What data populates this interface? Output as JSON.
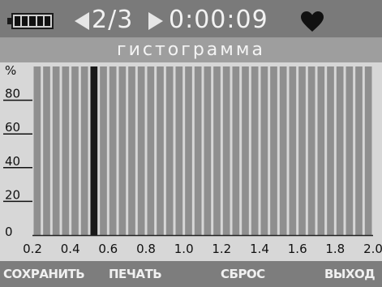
{
  "status": {
    "battery_icon": "battery-full-icon",
    "page_counter": "2/3",
    "timer": "0:00:09",
    "heart_icon": "heart-icon"
  },
  "header": {
    "title": "гистограмма"
  },
  "chart_data": {
    "type": "bar",
    "title": "",
    "ylabel": "%",
    "xlabel": "",
    "ylim": [
      0,
      100
    ],
    "xlim": [
      0.2,
      2.0
    ],
    "y_ticks": [
      "0",
      "20",
      "40",
      "60",
      "80"
    ],
    "x_ticks": [
      "0.2",
      "0.4",
      "0.6",
      "0.8",
      "1.0",
      "1.2",
      "1.4",
      "1.6",
      "1.8",
      "2.0"
    ],
    "bar_count": 36,
    "highlighted_bar_index": 6,
    "bar_color": "#8f8f8f",
    "highlight_color": "#1a1a1a",
    "values": [
      100,
      100,
      100,
      100,
      100,
      100,
      100,
      100,
      100,
      100,
      100,
      100,
      100,
      100,
      100,
      100,
      100,
      100,
      100,
      100,
      100,
      100,
      100,
      100,
      100,
      100,
      100,
      100,
      100,
      100,
      100,
      100,
      100,
      100,
      100,
      100
    ]
  },
  "softkeys": {
    "save": "СОХРАНИТЬ",
    "print": "ПЕЧАТЬ",
    "reset": "СБРОС",
    "exit": "ВЫХОД"
  }
}
